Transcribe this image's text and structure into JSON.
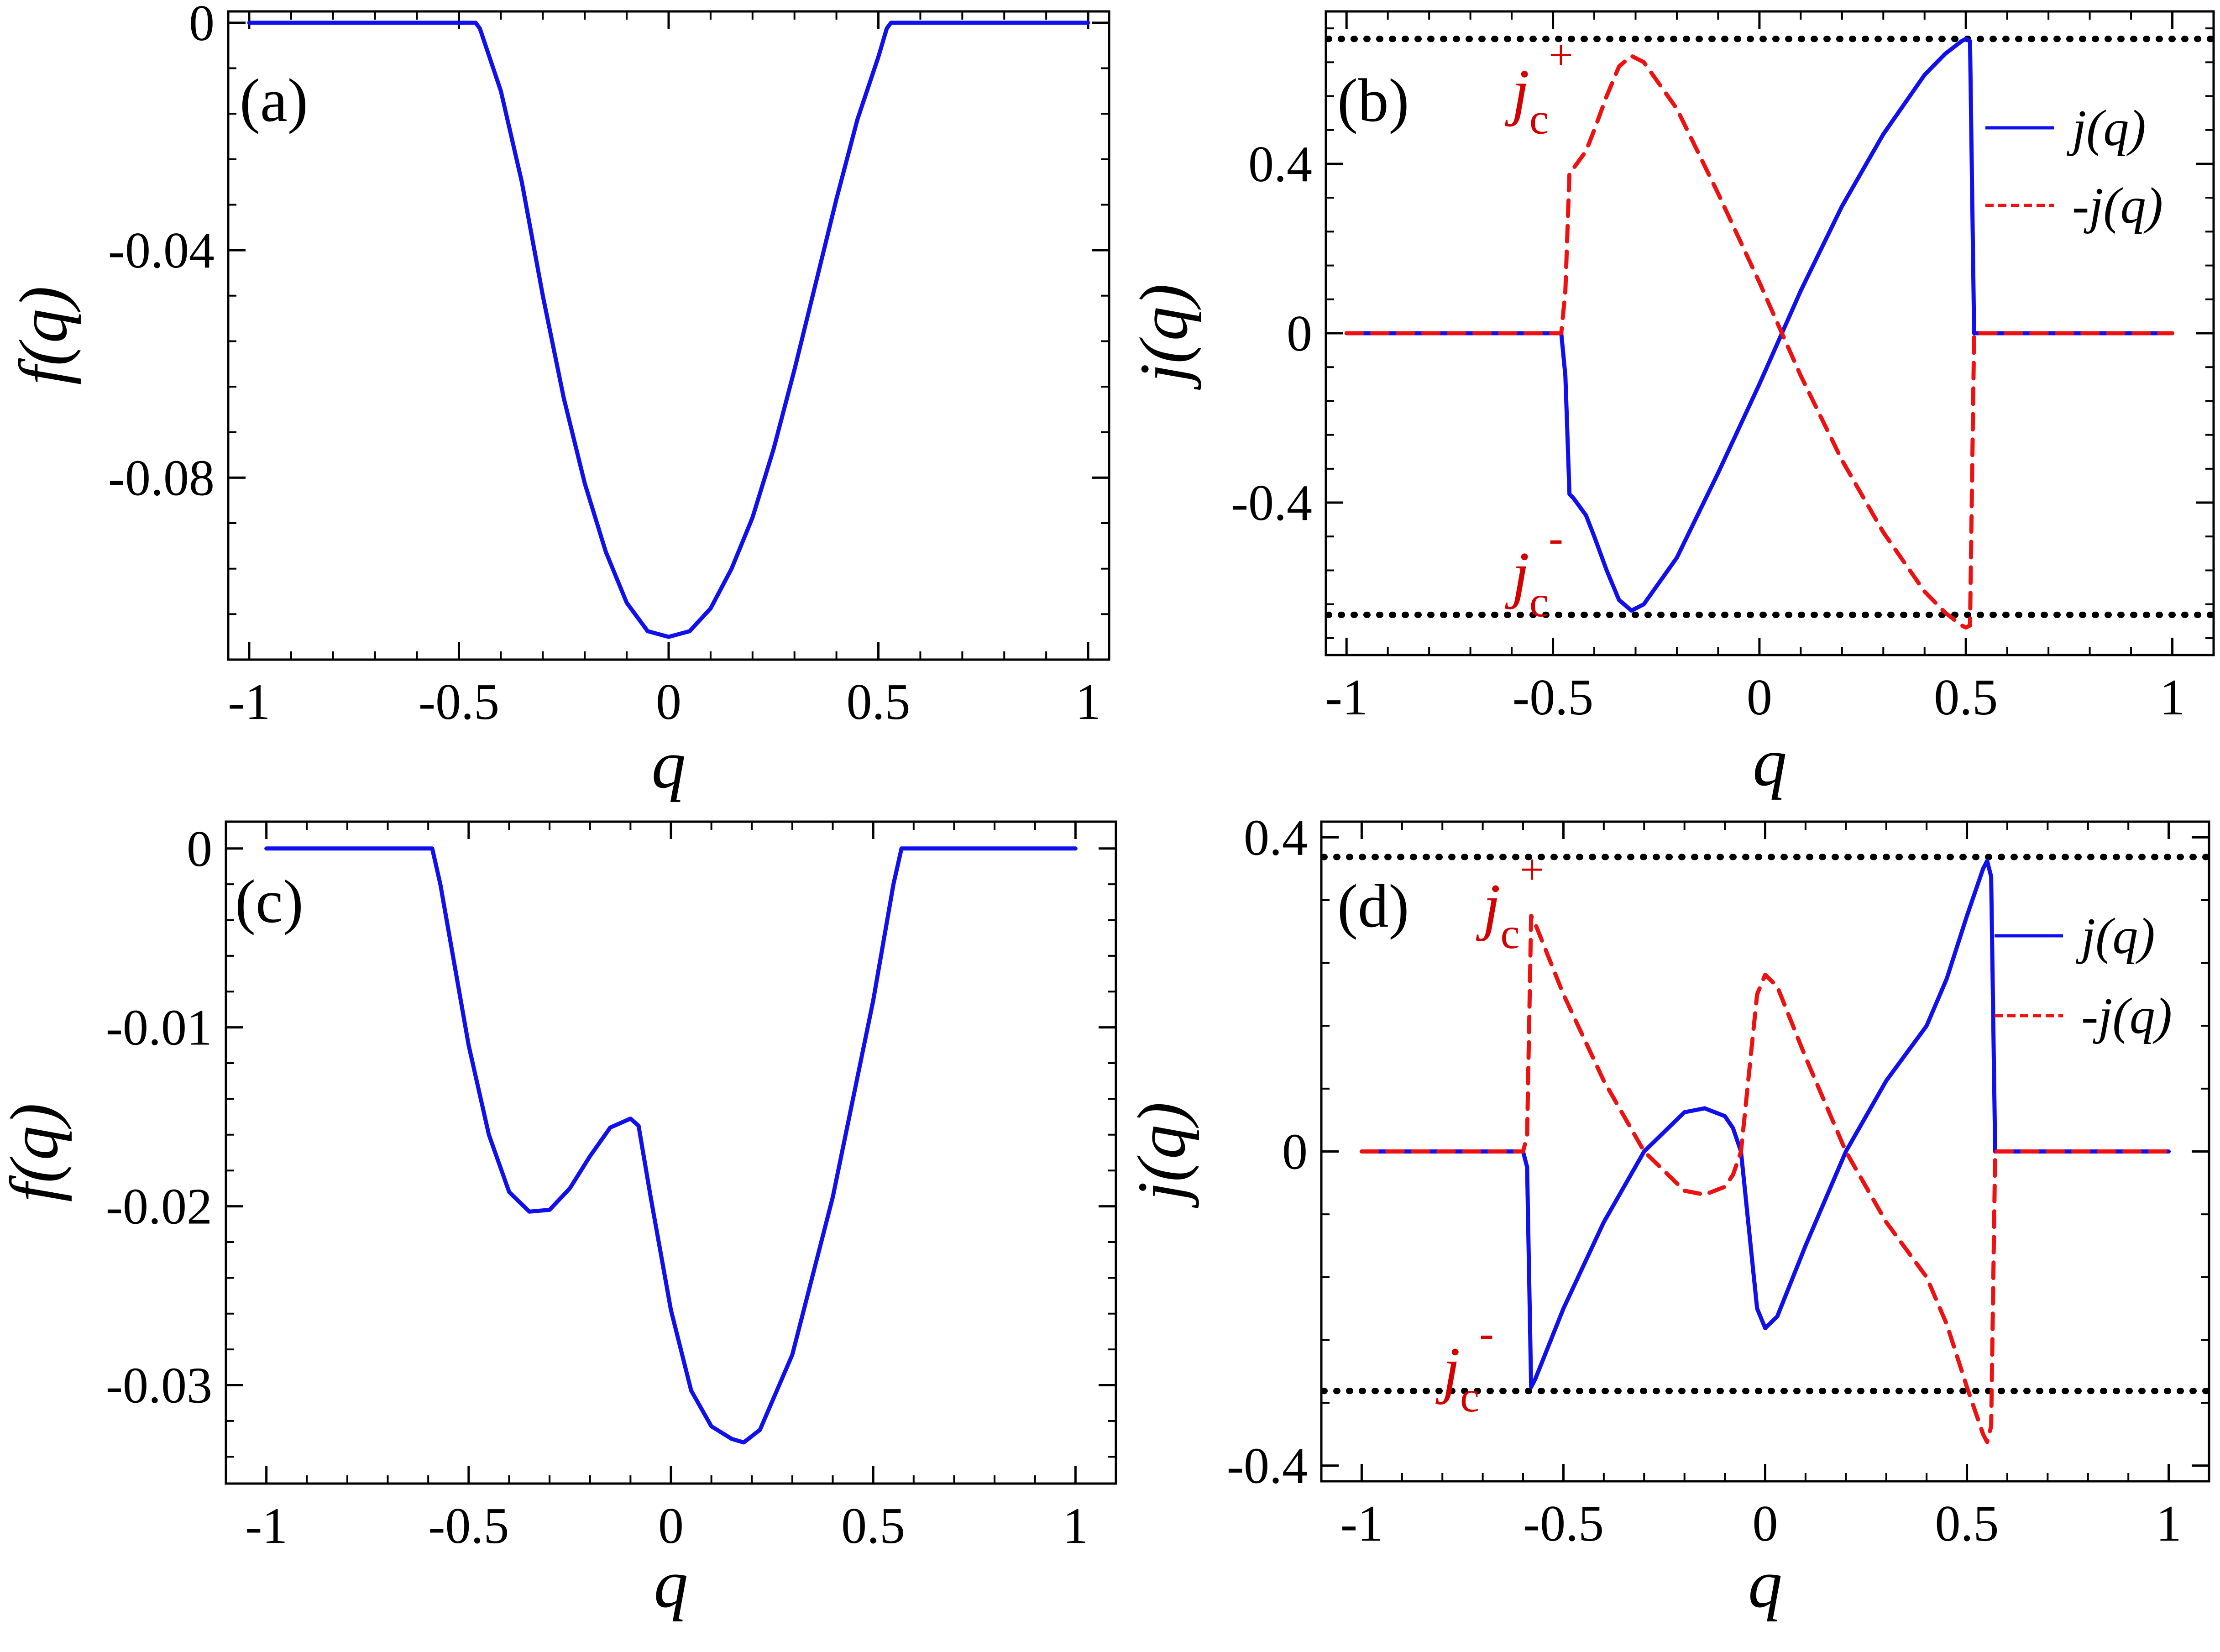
{
  "chart_data": [
    {
      "id": "a",
      "type": "line",
      "panel_label": "(a)",
      "xlabel": "q",
      "ylabel": "f(q)",
      "xlim": [
        -1.05,
        1.05
      ],
      "ylim": [
        -0.112,
        0.002
      ],
      "xticks": [
        -1,
        -0.5,
        0,
        0.5,
        1
      ],
      "xtick_labels": [
        "-1",
        "-0.5",
        "0",
        "0.5",
        "1"
      ],
      "yticks": [
        0,
        -0.04,
        -0.08
      ],
      "ytick_labels": [
        "0",
        "-0.04",
        "-0.08"
      ],
      "series": [
        {
          "name": "f(q)",
          "color": "#1010ee",
          "style": "solid",
          "x": [
            -1,
            -0.46,
            -0.45,
            -0.4,
            -0.35,
            -0.3,
            -0.25,
            -0.2,
            -0.15,
            -0.1,
            -0.05,
            0,
            0.05,
            0.1,
            0.15,
            0.2,
            0.25,
            0.3,
            0.35,
            0.4,
            0.45,
            0.5,
            0.52,
            0.53,
            1
          ],
          "y": [
            0,
            0,
            -0.001,
            -0.012,
            -0.028,
            -0.048,
            -0.066,
            -0.081,
            -0.093,
            -0.102,
            -0.107,
            -0.108,
            -0.107,
            -0.103,
            -0.096,
            -0.087,
            -0.075,
            -0.061,
            -0.046,
            -0.031,
            -0.017,
            -0.006,
            -0.001,
            0,
            0
          ]
        }
      ]
    },
    {
      "id": "b",
      "type": "line",
      "panel_label": "(b)",
      "xlabel": "q",
      "ylabel": "j(q)",
      "xlim": [
        -1.05,
        1.1
      ],
      "ylim": [
        -0.76,
        0.76
      ],
      "xticks": [
        -1,
        -0.5,
        0,
        0.5,
        1
      ],
      "xtick_labels": [
        "-1",
        "-0.5",
        "0",
        "0.5",
        "1"
      ],
      "yticks": [
        0.4,
        0,
        -0.4
      ],
      "ytick_labels": [
        "0.4",
        "0",
        "-0.4"
      ],
      "annotations": [
        {
          "base": "j",
          "sub": "c",
          "sup": "+",
          "x": -0.6,
          "y": 0.52
        },
        {
          "base": "j",
          "sub": "c",
          "sup": "-",
          "x": -0.6,
          "y": -0.62
        }
      ],
      "reference_lines": [
        {
          "y": 0.695,
          "color": "#000000",
          "style": "dotted"
        },
        {
          "y": -0.665,
          "color": "#000000",
          "style": "dotted"
        }
      ],
      "legend": {
        "position": "top-right",
        "entries": [
          "j(q)",
          "-j(q)"
        ]
      },
      "series": [
        {
          "name": "j(q)",
          "color": "#1010ee",
          "style": "solid",
          "x": [
            -1,
            -0.48,
            -0.47,
            -0.46,
            -0.45,
            -0.42,
            -0.4,
            -0.37,
            -0.34,
            -0.31,
            -0.28,
            -0.2,
            -0.1,
            0,
            0.1,
            0.2,
            0.3,
            0.4,
            0.45,
            0.49,
            0.5,
            0.51,
            0.52,
            1
          ],
          "y": [
            0,
            0,
            -0.1,
            -0.38,
            -0.39,
            -0.43,
            -0.48,
            -0.56,
            -0.63,
            -0.655,
            -0.64,
            -0.53,
            -0.33,
            -0.12,
            0.1,
            0.3,
            0.47,
            0.61,
            0.66,
            0.69,
            0.695,
            0.69,
            0,
            0
          ]
        },
        {
          "name": "-j(q)",
          "color": "#ee1111",
          "style": "dashed",
          "x": [
            -1,
            -0.48,
            -0.47,
            -0.46,
            -0.45,
            -0.42,
            -0.4,
            -0.37,
            -0.34,
            -0.31,
            -0.28,
            -0.2,
            -0.1,
            0,
            0.1,
            0.2,
            0.3,
            0.4,
            0.45,
            0.49,
            0.5,
            0.51,
            0.52,
            1
          ],
          "y": [
            0,
            0,
            0.1,
            0.38,
            0.39,
            0.43,
            0.48,
            0.56,
            0.63,
            0.655,
            0.64,
            0.53,
            0.33,
            0.12,
            -0.1,
            -0.3,
            -0.47,
            -0.61,
            -0.66,
            -0.69,
            -0.695,
            -0.69,
            0,
            0
          ]
        }
      ]
    },
    {
      "id": "c",
      "type": "line",
      "panel_label": "(c)",
      "xlabel": "q",
      "ylabel": "f(q)",
      "xlim": [
        -1.1,
        1.1
      ],
      "ylim": [
        -0.0355,
        0.0015
      ],
      "xticks": [
        -1,
        -0.5,
        0,
        0.5,
        1
      ],
      "xtick_labels": [
        "-1",
        "-0.5",
        "0",
        "0.5",
        "1"
      ],
      "yticks": [
        0,
        -0.01,
        -0.02,
        -0.03
      ],
      "ytick_labels": [
        "0",
        "-0.01",
        "-0.02",
        "-0.03"
      ],
      "series": [
        {
          "name": "f(q)",
          "color": "#1010ee",
          "style": "solid",
          "x": [
            -1,
            -0.59,
            -0.57,
            -0.5,
            -0.45,
            -0.4,
            -0.35,
            -0.3,
            -0.25,
            -0.2,
            -0.15,
            -0.1,
            -0.08,
            -0.05,
            0,
            0.05,
            0.1,
            0.15,
            0.18,
            0.22,
            0.3,
            0.4,
            0.5,
            0.55,
            0.57,
            1
          ],
          "y": [
            0,
            0,
            -0.002,
            -0.011,
            -0.016,
            -0.0192,
            -0.0203,
            -0.0202,
            -0.019,
            -0.0172,
            -0.0156,
            -0.0151,
            -0.0155,
            -0.0195,
            -0.0258,
            -0.0303,
            -0.0323,
            -0.033,
            -0.0332,
            -0.0325,
            -0.0283,
            -0.0195,
            -0.0085,
            -0.002,
            0,
            0
          ]
        }
      ]
    },
    {
      "id": "d",
      "type": "line",
      "panel_label": "(d)",
      "xlabel": "q",
      "ylabel": "j(q)",
      "xlim": [
        -1.1,
        1.1
      ],
      "ylim": [
        -0.42,
        0.42
      ],
      "xticks": [
        -1,
        -0.5,
        0,
        0.5,
        1
      ],
      "xtick_labels": [
        "-1",
        "-0.5",
        "0",
        "0.5",
        "1"
      ],
      "yticks": [
        0.4,
        0,
        -0.4
      ],
      "ytick_labels": [
        "0.4",
        "0",
        "-0.4"
      ],
      "annotations": [
        {
          "base": "j",
          "sub": "c",
          "sup": "+",
          "x": -0.7,
          "y": 0.285
        },
        {
          "base": "j",
          "sub": "c",
          "sup": "-",
          "x": -0.8,
          "y": -0.305
        }
      ],
      "reference_lines": [
        {
          "y": 0.375,
          "color": "#000000",
          "style": "dotted"
        },
        {
          "y": -0.305,
          "color": "#000000",
          "style": "dotted"
        }
      ],
      "legend": {
        "position": "top-right",
        "entries": [
          "j(q)",
          "-j(q)"
        ]
      },
      "series": [
        {
          "name": "j(q)",
          "color": "#1010ee",
          "style": "solid",
          "x": [
            -1,
            -0.6,
            -0.59,
            -0.58,
            -0.57,
            -0.5,
            -0.4,
            -0.3,
            -0.2,
            -0.15,
            -0.1,
            -0.08,
            -0.06,
            -0.04,
            -0.02,
            0,
            0.03,
            0.1,
            0.2,
            0.3,
            0.4,
            0.45,
            0.5,
            0.54,
            0.55,
            0.56,
            0.57,
            1
          ],
          "y": [
            0,
            0,
            -0.02,
            -0.3,
            -0.29,
            -0.2,
            -0.09,
            0.0,
            0.05,
            0.055,
            0.045,
            0.03,
            0.0,
            -0.1,
            -0.2,
            -0.225,
            -0.21,
            -0.12,
            0.0,
            0.09,
            0.16,
            0.22,
            0.3,
            0.36,
            0.37,
            0.35,
            0,
            0
          ]
        },
        {
          "name": "-j(q)",
          "color": "#ee1111",
          "style": "dashed",
          "x": [
            -1,
            -0.6,
            -0.59,
            -0.58,
            -0.57,
            -0.5,
            -0.4,
            -0.3,
            -0.2,
            -0.15,
            -0.1,
            -0.08,
            -0.06,
            -0.04,
            -0.02,
            0,
            0.03,
            0.1,
            0.2,
            0.3,
            0.4,
            0.45,
            0.5,
            0.54,
            0.55,
            0.56,
            0.57,
            1
          ],
          "y": [
            0,
            0,
            0.02,
            0.3,
            0.29,
            0.2,
            0.09,
            0.0,
            -0.05,
            -0.055,
            -0.045,
            -0.03,
            0.0,
            0.1,
            0.2,
            0.225,
            0.21,
            0.12,
            0.0,
            -0.09,
            -0.16,
            -0.22,
            -0.3,
            -0.36,
            -0.37,
            -0.35,
            0,
            0
          ]
        }
      ]
    }
  ]
}
